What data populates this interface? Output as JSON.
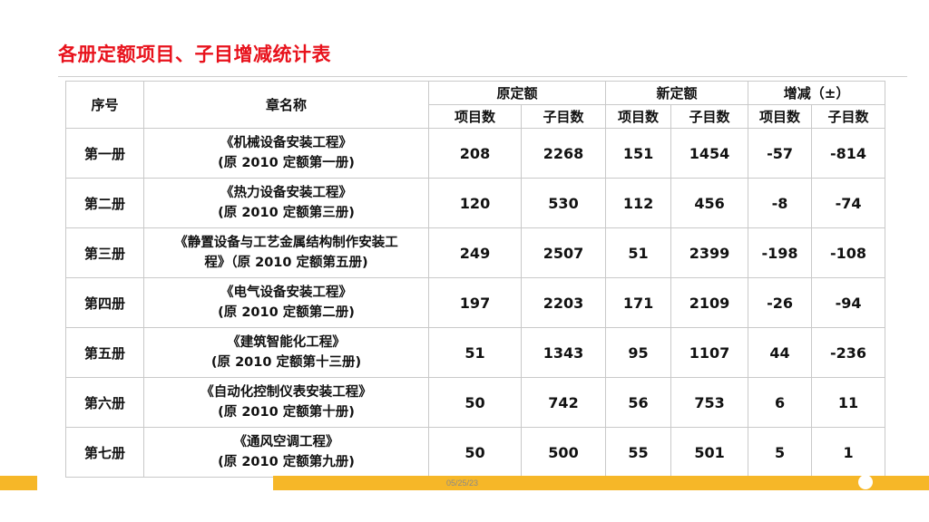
{
  "title": "各册定额项目、子目增减统计表",
  "table": {
    "headers": {
      "index": "序号",
      "chapter": "章名称",
      "groups": [
        "原定额",
        "新定额",
        "增减（±）"
      ],
      "sub": [
        "项目数",
        "子目数",
        "项目数",
        "子目数",
        "项目数",
        "子目数"
      ]
    },
    "rows": [
      {
        "idx": "第一册",
        "line1": "《机械设备安装工程》",
        "line2": "(原 2010 定额第一册)",
        "vals": [
          "208",
          "2268",
          "151",
          "1454",
          "-57",
          "-814"
        ]
      },
      {
        "idx": "第二册",
        "line1": "《热力设备安装工程》",
        "line2": "(原 2010 定额第三册)",
        "vals": [
          "120",
          "530",
          "112",
          "456",
          "-8",
          "-74"
        ]
      },
      {
        "idx": "第三册",
        "line1": "《静置设备与工艺金属结构制作安装工",
        "line2": "程》（原 2010 定额第五册)",
        "vals": [
          "249",
          "2507",
          "51",
          "2399",
          "-198",
          "-108"
        ]
      },
      {
        "idx": "第四册",
        "line1": "《电气设备安装工程》",
        "line2": "(原 2010 定额第二册)",
        "vals": [
          "197",
          "2203",
          "171",
          "2109",
          "-26",
          "-94"
        ]
      },
      {
        "idx": "第五册",
        "line1": "《建筑智能化工程》",
        "line2": "(原 2010 定额第十三册)",
        "vals": [
          "51",
          "1343",
          "95",
          "1107",
          "44",
          "-236"
        ]
      },
      {
        "idx": "第六册",
        "line1": "《自动化控制仪表安装工程》",
        "line2": "(原 2010 定额第十册)",
        "vals": [
          "50",
          "742",
          "56",
          "753",
          "6",
          "11"
        ]
      },
      {
        "idx": "第七册",
        "line1": "《通风空调工程》",
        "line2": "(原 2010 定额第九册)",
        "vals": [
          "50",
          "500",
          "55",
          "501",
          "5",
          "1"
        ]
      }
    ]
  },
  "footer": {
    "date": "05/25/23",
    "accent_color": "#f6b728",
    "title_color": "#e8121c"
  }
}
